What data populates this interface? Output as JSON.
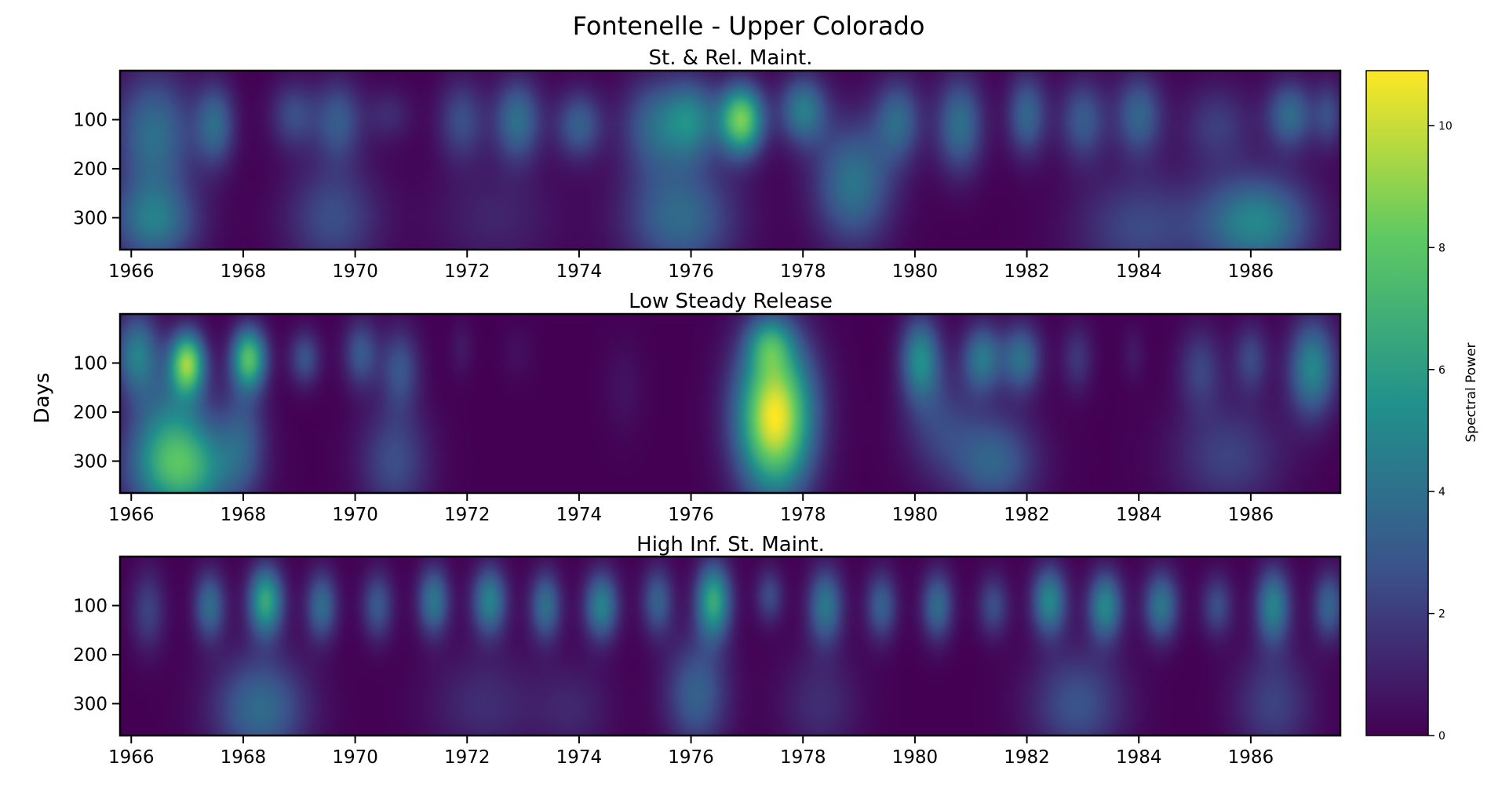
{
  "figure": {
    "title": "Fontenelle - Upper Colorado",
    "ylabel": "Days",
    "colorbar_label": "Spectral Power"
  },
  "chart_data": {
    "type": "heatmap",
    "colormap": [
      "#440154",
      "#3b528b",
      "#21918c",
      "#5ec962",
      "#fde725"
    ],
    "x_ticks": [
      1966,
      1968,
      1970,
      1972,
      1974,
      1976,
      1978,
      1980,
      1982,
      1984,
      1986
    ],
    "xlim": [
      1965.8,
      1987.6
    ],
    "y_ticks": [
      100,
      200,
      300
    ],
    "ylim": [
      365,
      0
    ],
    "colorbar": {
      "min": 0,
      "max": 10.9,
      "ticks": [
        0,
        2,
        4,
        6,
        8,
        10
      ]
    },
    "panels": [
      {
        "subtitle": "St. & Rel. Maint.",
        "blobs": [
          {
            "x": 1966.4,
            "y": 130,
            "sx": 0.5,
            "sy": 90,
            "v": 4.0
          },
          {
            "x": 1966.4,
            "y": 310,
            "sx": 0.55,
            "sy": 60,
            "v": 4.2
          },
          {
            "x": 1967.5,
            "y": 110,
            "sx": 0.25,
            "sy": 60,
            "v": 3.6
          },
          {
            "x": 1968.9,
            "y": 90,
            "sx": 0.3,
            "sy": 50,
            "v": 2.5
          },
          {
            "x": 1969.7,
            "y": 100,
            "sx": 0.3,
            "sy": 60,
            "v": 3.0
          },
          {
            "x": 1969.6,
            "y": 300,
            "sx": 0.6,
            "sy": 80,
            "v": 2.6
          },
          {
            "x": 1970.6,
            "y": 90,
            "sx": 0.3,
            "sy": 40,
            "v": 1.4
          },
          {
            "x": 1971.9,
            "y": 100,
            "sx": 0.3,
            "sy": 60,
            "v": 2.6
          },
          {
            "x": 1972.9,
            "y": 100,
            "sx": 0.3,
            "sy": 60,
            "v": 4.0
          },
          {
            "x": 1972.5,
            "y": 300,
            "sx": 0.8,
            "sy": 80,
            "v": 1.2
          },
          {
            "x": 1974.0,
            "y": 110,
            "sx": 0.3,
            "sy": 50,
            "v": 3.3
          },
          {
            "x": 1975.3,
            "y": 110,
            "sx": 0.4,
            "sy": 70,
            "v": 3.2
          },
          {
            "x": 1975.8,
            "y": 300,
            "sx": 0.7,
            "sy": 80,
            "v": 3.8
          },
          {
            "x": 1976.0,
            "y": 100,
            "sx": 0.35,
            "sy": 60,
            "v": 4.6
          },
          {
            "x": 1976.9,
            "y": 100,
            "sx": 0.28,
            "sy": 50,
            "v": 8.5
          },
          {
            "x": 1978.0,
            "y": 80,
            "sx": 0.3,
            "sy": 50,
            "v": 4.5
          },
          {
            "x": 1978.9,
            "y": 230,
            "sx": 0.5,
            "sy": 90,
            "v": 4.2
          },
          {
            "x": 1979.7,
            "y": 100,
            "sx": 0.3,
            "sy": 60,
            "v": 3.5
          },
          {
            "x": 1980.8,
            "y": 110,
            "sx": 0.3,
            "sy": 70,
            "v": 4.0
          },
          {
            "x": 1982.0,
            "y": 90,
            "sx": 0.25,
            "sy": 60,
            "v": 3.6
          },
          {
            "x": 1983.0,
            "y": 100,
            "sx": 0.3,
            "sy": 60,
            "v": 3.1
          },
          {
            "x": 1984.0,
            "y": 90,
            "sx": 0.3,
            "sy": 60,
            "v": 3.5
          },
          {
            "x": 1984.0,
            "y": 320,
            "sx": 0.8,
            "sy": 80,
            "v": 2.4
          },
          {
            "x": 1985.4,
            "y": 110,
            "sx": 0.45,
            "sy": 60,
            "v": 2.0
          },
          {
            "x": 1986.1,
            "y": 310,
            "sx": 0.7,
            "sy": 70,
            "v": 5.0
          },
          {
            "x": 1986.7,
            "y": 90,
            "sx": 0.3,
            "sy": 50,
            "v": 3.8
          },
          {
            "x": 1987.4,
            "y": 90,
            "sx": 0.2,
            "sy": 50,
            "v": 2.4
          }
        ]
      },
      {
        "subtitle": "Low Steady Release",
        "blobs": [
          {
            "x": 1966.1,
            "y": 80,
            "sx": 0.28,
            "sy": 60,
            "v": 4.5
          },
          {
            "x": 1966.9,
            "y": 320,
            "sx": 0.65,
            "sy": 70,
            "v": 6.5
          },
          {
            "x": 1966.7,
            "y": 220,
            "sx": 0.5,
            "sy": 80,
            "v": 3.2
          },
          {
            "x": 1967.0,
            "y": 100,
            "sx": 0.22,
            "sy": 45,
            "v": 8.5
          },
          {
            "x": 1968.1,
            "y": 90,
            "sx": 0.22,
            "sy": 45,
            "v": 7.5
          },
          {
            "x": 1968.0,
            "y": 250,
            "sx": 0.3,
            "sy": 80,
            "v": 2.5
          },
          {
            "x": 1969.1,
            "y": 90,
            "sx": 0.2,
            "sy": 40,
            "v": 2.8
          },
          {
            "x": 1970.1,
            "y": 80,
            "sx": 0.22,
            "sy": 50,
            "v": 3.0
          },
          {
            "x": 1970.8,
            "y": 110,
            "sx": 0.25,
            "sy": 60,
            "v": 2.8
          },
          {
            "x": 1970.7,
            "y": 300,
            "sx": 0.45,
            "sy": 80,
            "v": 2.6
          },
          {
            "x": 1971.9,
            "y": 70,
            "sx": 0.15,
            "sy": 40,
            "v": 0.8
          },
          {
            "x": 1972.9,
            "y": 80,
            "sx": 0.2,
            "sy": 40,
            "v": 0.5
          },
          {
            "x": 1974.8,
            "y": 150,
            "sx": 0.25,
            "sy": 70,
            "v": 0.6
          },
          {
            "x": 1977.5,
            "y": 210,
            "sx": 0.48,
            "sy": 110,
            "v": 10.9
          },
          {
            "x": 1977.4,
            "y": 60,
            "sx": 0.28,
            "sy": 40,
            "v": 3.5
          },
          {
            "x": 1980.1,
            "y": 90,
            "sx": 0.25,
            "sy": 60,
            "v": 5.0
          },
          {
            "x": 1980.4,
            "y": 220,
            "sx": 0.45,
            "sy": 80,
            "v": 2.0
          },
          {
            "x": 1981.2,
            "y": 90,
            "sx": 0.25,
            "sy": 50,
            "v": 4.3
          },
          {
            "x": 1981.9,
            "y": 90,
            "sx": 0.25,
            "sy": 50,
            "v": 4.0
          },
          {
            "x": 1981.4,
            "y": 300,
            "sx": 0.55,
            "sy": 70,
            "v": 3.5
          },
          {
            "x": 1982.9,
            "y": 90,
            "sx": 0.2,
            "sy": 50,
            "v": 1.8
          },
          {
            "x": 1983.9,
            "y": 80,
            "sx": 0.15,
            "sy": 40,
            "v": 0.8
          },
          {
            "x": 1985.1,
            "y": 110,
            "sx": 0.28,
            "sy": 60,
            "v": 2.2
          },
          {
            "x": 1985.6,
            "y": 290,
            "sx": 0.7,
            "sy": 80,
            "v": 2.2
          },
          {
            "x": 1986.0,
            "y": 90,
            "sx": 0.22,
            "sy": 50,
            "v": 2.4
          },
          {
            "x": 1987.1,
            "y": 110,
            "sx": 0.3,
            "sy": 70,
            "v": 5.0
          }
        ]
      },
      {
        "subtitle": "High Inf. St. Maint.",
        "blobs": [
          {
            "x": 1966.3,
            "y": 110,
            "sx": 0.22,
            "sy": 60,
            "v": 2.2
          },
          {
            "x": 1967.4,
            "y": 100,
            "sx": 0.2,
            "sy": 50,
            "v": 3.8
          },
          {
            "x": 1968.4,
            "y": 90,
            "sx": 0.22,
            "sy": 50,
            "v": 6.5
          },
          {
            "x": 1968.3,
            "y": 310,
            "sx": 0.6,
            "sy": 80,
            "v": 3.8
          },
          {
            "x": 1969.4,
            "y": 100,
            "sx": 0.2,
            "sy": 50,
            "v": 3.8
          },
          {
            "x": 1970.4,
            "y": 100,
            "sx": 0.2,
            "sy": 50,
            "v": 3.0
          },
          {
            "x": 1971.4,
            "y": 90,
            "sx": 0.2,
            "sy": 50,
            "v": 4.3
          },
          {
            "x": 1972.4,
            "y": 90,
            "sx": 0.22,
            "sy": 50,
            "v": 4.8
          },
          {
            "x": 1972.3,
            "y": 300,
            "sx": 0.7,
            "sy": 80,
            "v": 1.5
          },
          {
            "x": 1973.4,
            "y": 100,
            "sx": 0.2,
            "sy": 50,
            "v": 4.0
          },
          {
            "x": 1974.4,
            "y": 100,
            "sx": 0.22,
            "sy": 50,
            "v": 4.8
          },
          {
            "x": 1973.9,
            "y": 310,
            "sx": 0.5,
            "sy": 70,
            "v": 1.2
          },
          {
            "x": 1975.4,
            "y": 90,
            "sx": 0.2,
            "sy": 50,
            "v": 3.3
          },
          {
            "x": 1976.4,
            "y": 90,
            "sx": 0.22,
            "sy": 55,
            "v": 6.5
          },
          {
            "x": 1976.1,
            "y": 280,
            "sx": 0.4,
            "sy": 80,
            "v": 3.4
          },
          {
            "x": 1977.4,
            "y": 80,
            "sx": 0.18,
            "sy": 40,
            "v": 2.5
          },
          {
            "x": 1978.4,
            "y": 100,
            "sx": 0.22,
            "sy": 55,
            "v": 4.3
          },
          {
            "x": 1978.3,
            "y": 300,
            "sx": 0.5,
            "sy": 80,
            "v": 1.5
          },
          {
            "x": 1979.4,
            "y": 100,
            "sx": 0.2,
            "sy": 50,
            "v": 3.3
          },
          {
            "x": 1980.4,
            "y": 100,
            "sx": 0.2,
            "sy": 50,
            "v": 3.8
          },
          {
            "x": 1981.4,
            "y": 100,
            "sx": 0.2,
            "sy": 45,
            "v": 2.6
          },
          {
            "x": 1982.4,
            "y": 90,
            "sx": 0.22,
            "sy": 50,
            "v": 5.0
          },
          {
            "x": 1983.4,
            "y": 100,
            "sx": 0.22,
            "sy": 50,
            "v": 5.0
          },
          {
            "x": 1982.9,
            "y": 300,
            "sx": 0.6,
            "sy": 80,
            "v": 2.8
          },
          {
            "x": 1984.4,
            "y": 100,
            "sx": 0.22,
            "sy": 50,
            "v": 4.3
          },
          {
            "x": 1985.4,
            "y": 100,
            "sx": 0.2,
            "sy": 45,
            "v": 2.6
          },
          {
            "x": 1986.4,
            "y": 100,
            "sx": 0.22,
            "sy": 55,
            "v": 4.8
          },
          {
            "x": 1986.4,
            "y": 300,
            "sx": 0.5,
            "sy": 80,
            "v": 2.2
          },
          {
            "x": 1987.4,
            "y": 100,
            "sx": 0.2,
            "sy": 50,
            "v": 3.5
          }
        ]
      }
    ]
  }
}
